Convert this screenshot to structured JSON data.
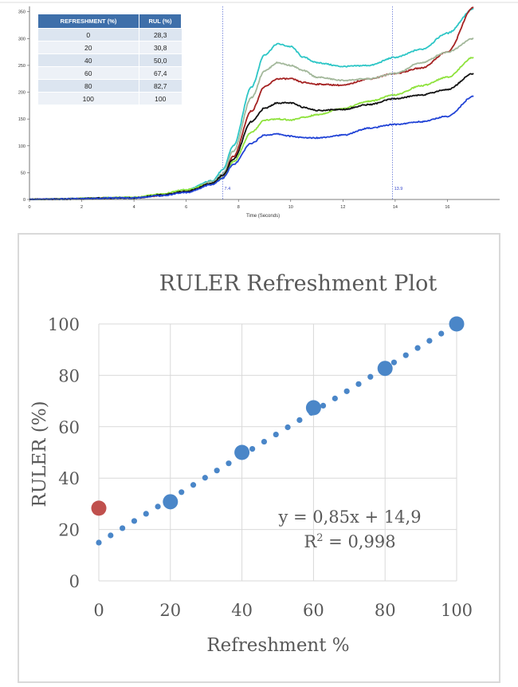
{
  "chart_data": [
    {
      "type": "line",
      "xlabel": "Time (Seconds)",
      "ylabel": "",
      "xlim": [
        0,
        18
      ],
      "ylim": [
        0,
        360
      ],
      "x_ticks": [
        0,
        2,
        4,
        6,
        8,
        10,
        12,
        14,
        16
      ],
      "y_ticks": [
        0,
        50,
        100,
        150,
        200,
        250,
        300,
        350
      ],
      "markers": [
        {
          "x": 7.4,
          "label": "7.4"
        },
        {
          "x": 13.9,
          "label": "13.9"
        }
      ],
      "grid": false,
      "table": {
        "headers": [
          "REFRESHMENT (%)",
          "RUL (%)"
        ],
        "rows": [
          [
            "0",
            "28,3"
          ],
          [
            "20",
            "30,8"
          ],
          [
            "40",
            "50,0"
          ],
          [
            "60",
            "67,4"
          ],
          [
            "80",
            "82,7"
          ],
          [
            "100",
            "100"
          ]
        ]
      },
      "series": [
        {
          "color": "#2dc6c6",
          "x": [
            0,
            4,
            5,
            6,
            7,
            7.4,
            7.8,
            8.5,
            9,
            9.5,
            10,
            10.5,
            11,
            12,
            13,
            14,
            15,
            16,
            17
          ],
          "y": [
            0,
            3,
            8,
            18,
            35,
            55,
            100,
            210,
            270,
            290,
            285,
            265,
            255,
            248,
            250,
            265,
            280,
            310,
            355
          ]
        },
        {
          "color": "#a52222",
          "x": [
            0,
            4,
            5,
            6,
            7,
            7.4,
            7.8,
            8.5,
            9,
            9.5,
            10,
            10.5,
            11,
            12,
            13,
            14,
            15,
            16,
            17
          ],
          "y": [
            0,
            3,
            7,
            15,
            30,
            45,
            80,
            165,
            210,
            225,
            225,
            218,
            215,
            213,
            225,
            235,
            245,
            275,
            358
          ]
        },
        {
          "color": "#a3b89b",
          "x": [
            0,
            4,
            5,
            6,
            7,
            7.4,
            7.8,
            8.5,
            9,
            9.5,
            10,
            10.5,
            11,
            12,
            13,
            14,
            15,
            16,
            17
          ],
          "y": [
            0,
            3,
            8,
            16,
            33,
            48,
            90,
            190,
            240,
            255,
            250,
            240,
            228,
            222,
            225,
            235,
            255,
            275,
            300
          ]
        },
        {
          "color": "#8ee23c",
          "x": [
            0,
            4,
            5,
            6,
            7,
            7.4,
            7.8,
            8.5,
            9,
            9.5,
            10,
            10.5,
            11,
            12,
            13,
            14,
            15,
            16,
            17
          ],
          "y": [
            0,
            4,
            10,
            18,
            30,
            40,
            70,
            125,
            148,
            150,
            148,
            153,
            158,
            170,
            183,
            195,
            212,
            228,
            265
          ]
        },
        {
          "color": "#111111",
          "x": [
            0,
            4,
            5,
            6,
            7,
            7.4,
            7.8,
            8.5,
            9,
            9.5,
            10,
            10.5,
            11,
            12,
            13,
            14,
            15,
            16,
            17
          ],
          "y": [
            0,
            3,
            8,
            15,
            30,
            45,
            75,
            145,
            170,
            180,
            180,
            172,
            166,
            168,
            177,
            188,
            195,
            205,
            235
          ]
        },
        {
          "color": "#2244d6",
          "x": [
            0,
            4,
            5,
            6,
            7,
            7.4,
            7.8,
            8.5,
            9,
            9.5,
            10,
            10.5,
            11,
            12,
            13,
            14,
            15,
            16,
            17
          ],
          "y": [
            0,
            3,
            7,
            13,
            28,
            40,
            65,
            105,
            120,
            122,
            118,
            115,
            115,
            120,
            133,
            140,
            145,
            155,
            192
          ]
        }
      ]
    },
    {
      "type": "scatter",
      "title": "RULER Refreshment Plot",
      "xlabel": "Refreshment %",
      "ylabel": "RULER (%)",
      "xlim": [
        0,
        100
      ],
      "ylim": [
        0,
        100
      ],
      "x_ticks": [
        0,
        20,
        40,
        60,
        80,
        100
      ],
      "y_ticks": [
        0,
        20,
        40,
        60,
        80,
        100
      ],
      "grid": true,
      "points": [
        {
          "x": 0,
          "y": 28.3,
          "color": "#c0504d"
        },
        {
          "x": 20,
          "y": 30.8,
          "color": "#4a86c8"
        },
        {
          "x": 40,
          "y": 50.0,
          "color": "#4a86c8"
        },
        {
          "x": 60,
          "y": 67.4,
          "color": "#4a86c8"
        },
        {
          "x": 80,
          "y": 82.7,
          "color": "#4a86c8"
        },
        {
          "x": 100,
          "y": 100,
          "color": "#4a86c8"
        }
      ],
      "trendline": {
        "slope": 0.85,
        "intercept": 14.9,
        "color": "#4a86c8"
      },
      "equation": "y = 0,85x + 14,9",
      "r2_prefix": "R",
      "r2_sup": "2",
      "r2_suffix": " = 0,998"
    }
  ]
}
